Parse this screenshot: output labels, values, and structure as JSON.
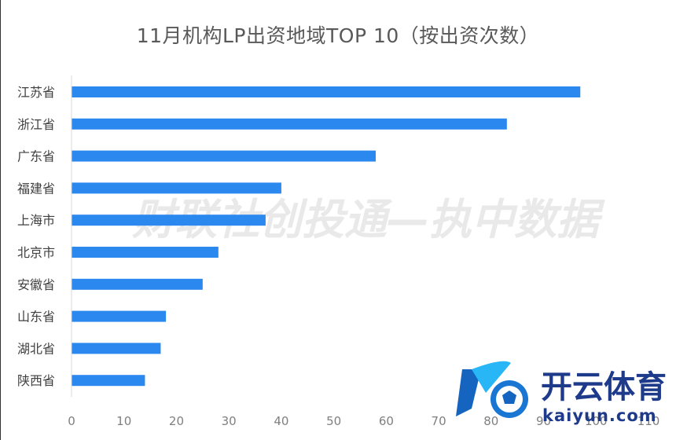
{
  "chart_data": {
    "type": "bar",
    "orientation": "horizontal",
    "title": "11月机构LP出资地域TOP 10（按出资次数）",
    "categories": [
      "江苏省",
      "浙江省",
      "广东省",
      "福建省",
      "上海市",
      "北京市",
      "安徽省",
      "山东省",
      "湖北省",
      "陕西省"
    ],
    "values": [
      97,
      83,
      58,
      40,
      37,
      28,
      25,
      18,
      17,
      14
    ],
    "xticks": [
      0,
      10,
      20,
      30,
      40,
      50,
      60,
      70,
      80,
      90,
      100,
      110
    ],
    "xlim": [
      0,
      110
    ],
    "bar_color": "#2b88ee",
    "grid": false
  },
  "watermark": "财联社创投通—执中数据",
  "logo": {
    "name": "开云体育",
    "url": "kaiyun.com"
  }
}
